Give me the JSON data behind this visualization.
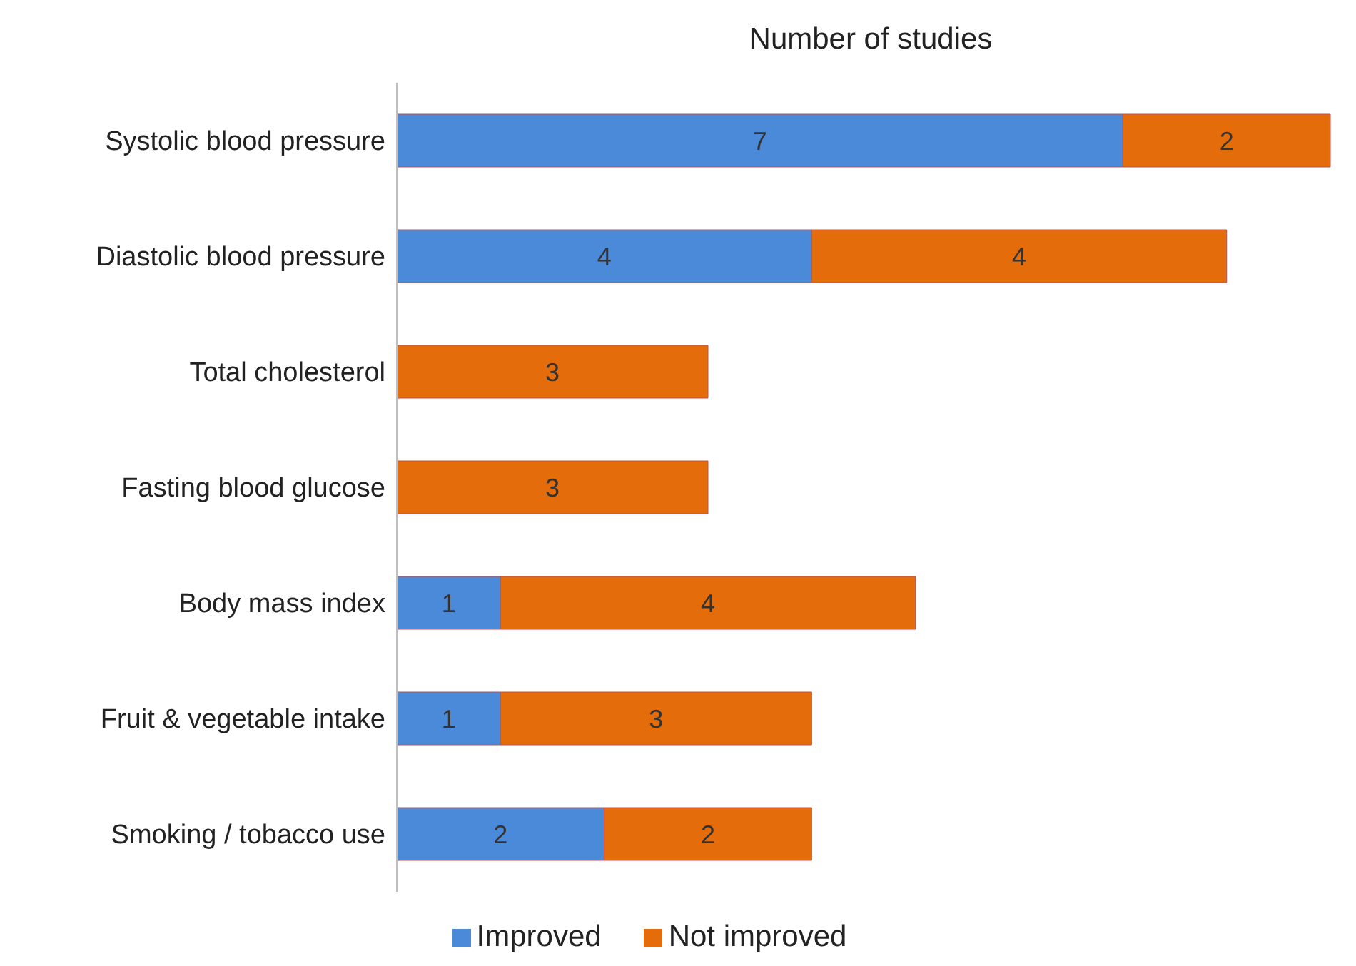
{
  "chart_data": {
    "type": "bar",
    "title": "Number of studies",
    "orientation": "horizontal",
    "stacked": true,
    "data_labels": true,
    "legend": "bottom",
    "grid": false,
    "categories": [
      "Systolic blood pressure",
      "Diastolic blood pressure",
      "Total cholesterol",
      "Fasting blood glucose",
      "Body mass index",
      "Fruit & vegetable intake",
      "Smoking / tobacco use"
    ],
    "series": [
      {
        "name": "Improved",
        "color": "#4a8ad8",
        "values": [
          7,
          4,
          null,
          null,
          1,
          1,
          2
        ]
      },
      {
        "name": "Not improved",
        "color": "#e46c0a",
        "values": [
          2,
          4,
          3,
          3,
          4,
          3,
          2
        ]
      }
    ]
  }
}
